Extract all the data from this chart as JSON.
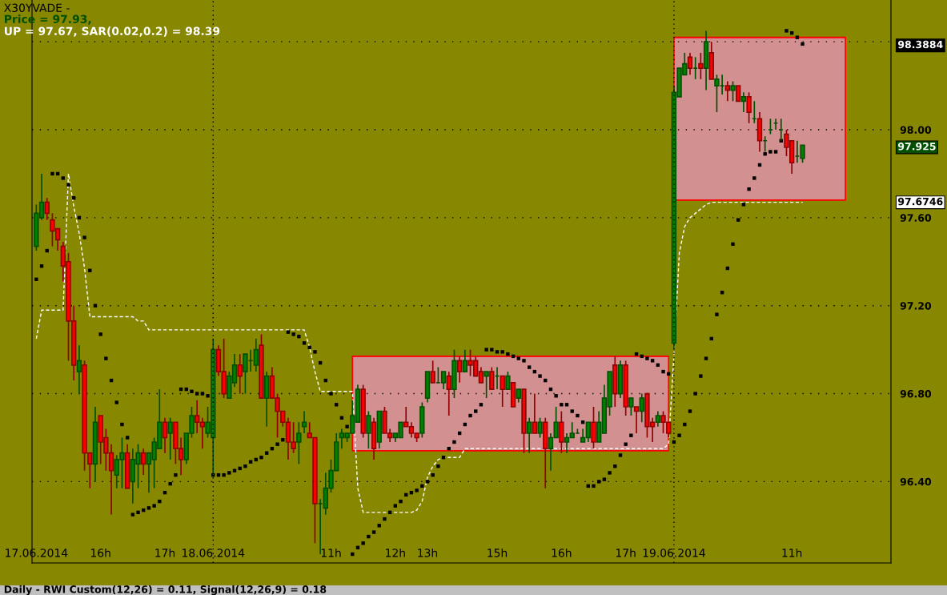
{
  "chart_data": {
    "type": "candlestick",
    "title": "X30YVADE -",
    "annotations": [
      "Price = 97.93,",
      "UP = 97.67, SAR(0.02,0.2) = 98.39",
      "Daily - RWI Custom(12,26) = 0.11, Signal(12,26,9) = 0.18"
    ],
    "categories": [
      "17.06.2014",
      null,
      null,
      null,
      null,
      null,
      null,
      null,
      null,
      null,
      null,
      null,
      "16h",
      null,
      null,
      null,
      null,
      null,
      null,
      null,
      null,
      null,
      null,
      null,
      "17h",
      null,
      null,
      null,
      null,
      null,
      null,
      null,
      null,
      "18.06.2014",
      null,
      null,
      null,
      null,
      null,
      null,
      null,
      null,
      null,
      null,
      null,
      null,
      null,
      null,
      null,
      null,
      null,
      null,
      null,
      null,
      null,
      "11h",
      null,
      null,
      null,
      null,
      null,
      null,
      null,
      null,
      null,
      null,
      null,
      "12h",
      null,
      null,
      null,
      null,
      null,
      "13h",
      null,
      null,
      null,
      null,
      null,
      null,
      null,
      null,
      null,
      null,
      null,
      null,
      "15h",
      null,
      null,
      null,
      null,
      null,
      null,
      null,
      null,
      null,
      null,
      null,
      "16h",
      null,
      null,
      null,
      null,
      null,
      null,
      null,
      null,
      null,
      null,
      null,
      "17h",
      null,
      null,
      null,
      null,
      null,
      null,
      null,
      null,
      "19.06.2014",
      null,
      null,
      null,
      null,
      null,
      null,
      null,
      null,
      null,
      null,
      null,
      null,
      null,
      null,
      null,
      null,
      null,
      null,
      null,
      null,
      null,
      "11h",
      null,
      null,
      null,
      null,
      null,
      null,
      null,
      null,
      null,
      null,
      null,
      null,
      null,
      null,
      null,
      null,
      null,
      null
    ],
    "ohlc": [
      [
        97.47,
        97.66,
        97.45,
        97.62
      ],
      [
        97.6,
        97.8,
        97.59,
        97.67
      ],
      [
        97.67,
        97.69,
        97.59,
        97.62
      ],
      [
        97.59,
        97.62,
        97.47,
        97.54
      ],
      [
        97.55,
        97.55,
        97.45,
        97.5
      ],
      [
        97.47,
        97.49,
        97.31,
        97.38
      ],
      [
        97.4,
        97.44,
        96.95,
        97.13
      ],
      [
        97.13,
        97.2,
        96.86,
        96.93
      ],
      [
        96.9,
        97.02,
        96.8,
        96.95
      ],
      [
        96.93,
        96.95,
        96.45,
        96.53
      ],
      [
        96.53,
        96.53,
        96.37,
        96.48
      ],
      [
        96.48,
        96.74,
        96.4,
        96.67
      ],
      [
        96.7,
        96.7,
        96.48,
        96.58
      ],
      [
        96.6,
        96.64,
        96.45,
        96.53
      ],
      [
        96.53,
        96.57,
        96.25,
        96.45
      ],
      [
        96.43,
        96.52,
        96.37,
        96.5
      ],
      [
        96.5,
        96.6,
        96.37,
        96.53
      ],
      [
        96.53,
        96.57,
        96.37,
        96.37
      ],
      [
        96.4,
        96.55,
        96.3,
        96.5
      ],
      [
        96.48,
        96.57,
        96.37,
        96.53
      ],
      [
        96.53,
        96.55,
        96.43,
        96.48
      ],
      [
        96.48,
        96.53,
        96.35,
        96.53
      ],
      [
        96.5,
        96.6,
        96.37,
        96.58
      ],
      [
        96.55,
        96.82,
        96.55,
        96.67
      ],
      [
        96.67,
        96.69,
        96.53,
        96.6
      ],
      [
        96.62,
        96.69,
        96.5,
        96.67
      ],
      [
        96.67,
        96.67,
        96.48,
        96.55
      ],
      [
        96.55,
        96.6,
        96.43,
        96.5
      ],
      [
        96.5,
        96.62,
        96.48,
        96.62
      ],
      [
        96.62,
        96.74,
        96.6,
        96.7
      ],
      [
        96.7,
        96.77,
        96.62,
        96.67
      ],
      [
        96.67,
        96.69,
        96.55,
        96.65
      ],
      [
        96.62,
        96.74,
        96.6,
        96.67
      ],
      [
        96.6,
        97.05,
        96.43,
        97.0
      ],
      [
        97.0,
        97.02,
        96.88,
        96.9
      ],
      [
        96.9,
        97.05,
        96.78,
        96.8
      ],
      [
        96.78,
        96.9,
        96.78,
        96.88
      ],
      [
        96.85,
        96.98,
        96.83,
        96.93
      ],
      [
        96.93,
        96.98,
        96.8,
        96.88
      ],
      [
        96.9,
        96.98,
        96.8,
        96.98
      ],
      [
        96.95,
        97.0,
        96.9,
        96.95
      ],
      [
        96.93,
        97.05,
        96.9,
        97.0
      ],
      [
        97.02,
        97.07,
        96.78,
        96.78
      ],
      [
        96.78,
        96.9,
        96.65,
        96.88
      ],
      [
        96.88,
        96.92,
        96.78,
        96.78
      ],
      [
        96.78,
        96.8,
        96.6,
        96.72
      ],
      [
        96.72,
        96.72,
        96.65,
        96.67
      ],
      [
        96.67,
        96.69,
        96.5,
        96.58
      ],
      [
        96.58,
        96.67,
        96.53,
        96.55
      ],
      [
        96.58,
        96.67,
        96.48,
        96.62
      ],
      [
        96.65,
        96.72,
        96.62,
        96.67
      ],
      [
        96.62,
        96.67,
        96.6,
        96.6
      ],
      [
        96.6,
        96.6,
        96.12,
        96.3
      ],
      [
        96.3,
        96.32,
        96.07,
        96.3
      ],
      [
        96.28,
        96.44,
        96.25,
        96.37
      ],
      [
        96.37,
        96.5,
        96.35,
        96.45
      ],
      [
        96.45,
        96.62,
        96.45,
        96.58
      ],
      [
        96.6,
        96.64,
        96.55,
        96.62
      ],
      [
        96.6,
        96.62,
        96.58,
        96.62
      ],
      [
        96.62,
        96.77,
        96.62,
        96.7
      ],
      [
        96.67,
        96.84,
        96.67,
        96.82
      ],
      [
        96.82,
        96.84,
        96.6,
        96.62
      ],
      [
        96.62,
        96.72,
        96.55,
        96.7
      ],
      [
        96.67,
        96.69,
        96.5,
        96.55
      ],
      [
        96.58,
        96.72,
        96.55,
        96.72
      ],
      [
        96.72,
        96.74,
        96.62,
        96.62
      ],
      [
        96.62,
        96.64,
        96.58,
        96.6
      ],
      [
        96.6,
        96.62,
        96.58,
        96.62
      ],
      [
        96.6,
        96.67,
        96.6,
        96.67
      ],
      [
        96.67,
        96.74,
        96.65,
        96.65
      ],
      [
        96.65,
        96.67,
        96.6,
        96.62
      ],
      [
        96.62,
        96.62,
        96.58,
        96.6
      ],
      [
        96.62,
        96.76,
        96.6,
        96.74
      ],
      [
        96.78,
        96.9,
        96.76,
        96.9
      ],
      [
        96.9,
        96.95,
        96.85,
        96.85
      ],
      [
        96.85,
        96.92,
        96.85,
        96.85
      ],
      [
        96.85,
        96.9,
        96.82,
        96.9
      ],
      [
        96.88,
        96.9,
        96.7,
        96.82
      ],
      [
        96.82,
        97.0,
        96.78,
        96.95
      ],
      [
        96.95,
        96.97,
        96.85,
        96.9
      ],
      [
        96.9,
        97.0,
        96.9,
        96.95
      ],
      [
        96.95,
        97.0,
        96.88,
        96.93
      ],
      [
        96.95,
        96.97,
        96.88,
        96.88
      ],
      [
        96.9,
        96.92,
        96.85,
        96.85
      ],
      [
        96.88,
        96.9,
        96.78,
        96.9
      ],
      [
        96.9,
        96.92,
        96.82,
        96.82
      ],
      [
        96.88,
        96.92,
        96.82,
        96.88
      ],
      [
        96.88,
        96.88,
        96.74,
        96.82
      ],
      [
        96.82,
        96.9,
        96.82,
        96.88
      ],
      [
        96.85,
        96.85,
        96.74,
        96.74
      ],
      [
        96.78,
        96.82,
        96.76,
        96.82
      ],
      [
        96.82,
        96.82,
        96.53,
        96.62
      ],
      [
        96.62,
        96.69,
        96.53,
        96.67
      ],
      [
        96.67,
        96.8,
        96.62,
        96.62
      ],
      [
        96.62,
        96.69,
        96.6,
        96.67
      ],
      [
        96.67,
        96.69,
        96.37,
        96.55
      ],
      [
        96.55,
        96.62,
        96.45,
        96.6
      ],
      [
        96.6,
        96.74,
        96.6,
        96.67
      ],
      [
        96.67,
        96.72,
        96.53,
        96.58
      ],
      [
        96.58,
        96.62,
        96.53,
        96.6
      ],
      [
        96.6,
        96.67,
        96.6,
        96.62
      ],
      [
        96.62,
        96.64,
        96.62,
        96.62
      ],
      [
        96.58,
        96.64,
        96.58,
        96.6
      ],
      [
        96.6,
        96.67,
        96.58,
        96.67
      ],
      [
        96.67,
        96.74,
        96.55,
        96.58
      ],
      [
        96.58,
        96.72,
        96.58,
        96.67
      ],
      [
        96.62,
        96.84,
        96.62,
        96.78
      ],
      [
        96.74,
        96.9,
        96.7,
        96.9
      ],
      [
        96.93,
        96.97,
        96.74,
        96.8
      ],
      [
        96.8,
        96.95,
        96.78,
        96.93
      ],
      [
        96.93,
        96.95,
        96.7,
        96.74
      ],
      [
        96.74,
        96.78,
        96.7,
        96.78
      ],
      [
        96.74,
        96.74,
        96.62,
        96.72
      ],
      [
        96.72,
        96.8,
        96.67,
        96.78
      ],
      [
        96.8,
        96.8,
        96.6,
        96.65
      ],
      [
        96.67,
        96.69,
        96.58,
        96.65
      ],
      [
        96.67,
        96.72,
        96.65,
        96.7
      ],
      [
        96.7,
        96.72,
        96.62,
        96.67
      ],
      [
        96.67,
        96.67,
        96.6,
        96.62
      ],
      [
        97.03,
        98.2,
        97.0,
        98.17
      ],
      [
        98.15,
        98.28,
        98.15,
        98.28
      ],
      [
        98.25,
        98.35,
        98.25,
        98.3
      ],
      [
        98.33,
        98.35,
        98.25,
        98.28
      ],
      [
        98.28,
        98.33,
        98.23,
        98.28
      ],
      [
        98.3,
        98.35,
        98.23,
        98.28
      ],
      [
        98.28,
        98.45,
        98.18,
        98.4
      ],
      [
        98.35,
        98.4,
        98.23,
        98.23
      ],
      [
        98.2,
        98.25,
        98.08,
        98.23
      ],
      [
        98.2,
        98.25,
        98.16,
        98.2
      ],
      [
        98.2,
        98.22,
        98.13,
        98.18
      ],
      [
        98.18,
        98.22,
        98.13,
        98.2
      ],
      [
        98.2,
        98.2,
        98.13,
        98.13
      ],
      [
        98.13,
        98.17,
        98.08,
        98.15
      ],
      [
        98.15,
        98.17,
        98.03,
        98.08
      ],
      [
        98.05,
        98.13,
        98.03,
        98.05
      ],
      [
        98.05,
        98.08,
        97.9,
        97.95
      ],
      [
        97.95,
        97.97,
        97.9,
        97.95
      ],
      [
        98.0,
        98.05,
        97.98,
        98.0
      ],
      [
        98.03,
        98.05,
        98.0,
        98.03
      ],
      [
        98.0,
        98.05,
        97.95,
        98.0
      ],
      [
        97.98,
        98.0,
        97.88,
        97.92
      ],
      [
        97.95,
        97.95,
        97.8,
        97.85
      ],
      [
        97.88,
        97.95,
        97.85,
        97.88
      ],
      [
        97.87,
        97.93,
        97.85,
        97.93
      ],
      null,
      null,
      null,
      null,
      null,
      null,
      null,
      null,
      null,
      null,
      null,
      null,
      null,
      null,
      null,
      null
    ],
    "series": [
      {
        "type": "line",
        "color": "#ff0000",
        "upper": [
          null,
          null,
          null,
          null,
          null,
          null,
          null,
          null,
          null,
          null,
          null,
          null,
          null,
          null,
          null,
          null,
          null,
          null,
          null,
          null,
          null,
          null,
          null,
          null,
          null,
          null,
          null,
          null,
          null,
          null,
          null,
          null,
          null,
          null,
          null,
          null,
          null,
          null,
          null,
          null,
          null,
          null,
          null,
          null,
          null,
          null,
          null,
          null,
          null,
          null,
          null,
          null,
          null,
          null,
          null,
          null,
          null,
          null,
          null,
          96.97,
          96.97,
          96.97,
          96.97,
          96.97,
          96.97,
          96.97,
          96.97,
          96.97,
          96.97,
          96.97,
          96.97,
          96.97,
          96.97,
          96.97,
          96.97,
          96.97,
          96.97,
          96.97,
          96.97,
          96.97,
          96.97,
          96.97,
          96.97,
          96.97,
          96.97,
          96.97,
          96.97,
          96.97,
          96.97,
          96.97,
          96.97,
          96.97,
          96.97,
          96.97,
          96.97,
          96.97,
          96.97,
          96.97,
          96.97,
          96.97,
          96.97,
          96.97,
          96.97,
          96.97,
          96.97,
          96.97,
          96.97,
          96.97,
          96.97,
          96.97,
          96.97,
          96.97,
          96.97,
          96.97,
          96.97,
          96.97,
          96.97,
          96.97,
          96.97,
          null,
          null,
          null,
          null,
          null,
          null,
          null,
          null,
          null,
          null,
          null,
          null,
          null,
          null,
          null,
          null,
          null,
          null,
          null,
          null,
          null,
          null,
          null,
          null,
          null,
          null,
          null,
          null,
          null,
          null,
          null,
          null,
          null,
          null,
          null,
          null,
          null,
          null,
          null,
          null,
          null
        ],
        "values": [
          null,
          null,
          null,
          null,
          null,
          null,
          null,
          null,
          null,
          null,
          null,
          null,
          null,
          null,
          null,
          null,
          null,
          null,
          null,
          null,
          null,
          null,
          null,
          null,
          null,
          null,
          null,
          null,
          null,
          null,
          null,
          null,
          null,
          null,
          null,
          null,
          null,
          null,
          null,
          null,
          null,
          null,
          null,
          null,
          null,
          null,
          null,
          null,
          null,
          null,
          null,
          null,
          null,
          null,
          null,
          null,
          null,
          null,
          null,
          96.97,
          96.97,
          96.97,
          96.97,
          96.97,
          96.97,
          96.97,
          96.97,
          96.97,
          96.97,
          96.97,
          96.97,
          96.97,
          96.97,
          96.97,
          96.97,
          96.97,
          96.97,
          96.97,
          96.97,
          96.97,
          96.97,
          96.97,
          96.97,
          96.97,
          96.97,
          96.97,
          96.97,
          96.97,
          96.97,
          96.97,
          96.97,
          96.97,
          96.97,
          96.97,
          96.97,
          96.97,
          96.97,
          96.97,
          96.97,
          96.97,
          96.97,
          96.97,
          96.97,
          96.97,
          96.97,
          96.97,
          96.97,
          96.97,
          96.97,
          96.97,
          96.97,
          96.97,
          96.97,
          96.97,
          96.97,
          96.97,
          96.97,
          96.97,
          96.97,
          null,
          null,
          null,
          null,
          null,
          null,
          null,
          null,
          null,
          null,
          null,
          null,
          null,
          null,
          null,
          null,
          null,
          null,
          null,
          null,
          null,
          null,
          null,
          null,
          null,
          null,
          null,
          null,
          null,
          null,
          null,
          null,
          null,
          null,
          null,
          null,
          null,
          null,
          null,
          null,
          null
        ],
        "lower": [
          null,
          null,
          null,
          null,
          null,
          null,
          null,
          null,
          null,
          null,
          null,
          null,
          null,
          null,
          null,
          null,
          null,
          null,
          null,
          null,
          null,
          null,
          null,
          null,
          null,
          null,
          null,
          null,
          null,
          null,
          null,
          null,
          null,
          null,
          null,
          null,
          null,
          null,
          null,
          null,
          null,
          null,
          null,
          null,
          null,
          null,
          null,
          null,
          null,
          null,
          null,
          null,
          null,
          null,
          null,
          null,
          null,
          null,
          null,
          96.54,
          96.54,
          96.54,
          96.54,
          96.54,
          96.54,
          96.54,
          96.54,
          96.54,
          96.54,
          96.54,
          96.54,
          96.54,
          96.54,
          96.54,
          96.54,
          96.54,
          96.54,
          96.54,
          96.54,
          96.54,
          96.54,
          96.54,
          96.54,
          96.54,
          96.54,
          96.54,
          96.54,
          96.54,
          96.54,
          96.54,
          96.54,
          96.54,
          96.54,
          96.54,
          96.54,
          96.54,
          96.54,
          96.54,
          96.54,
          96.54,
          96.54,
          96.54,
          96.54,
          96.54,
          96.54,
          96.54,
          96.54,
          96.54,
          96.54,
          96.54,
          96.54,
          96.54,
          96.54,
          96.54,
          96.54,
          96.54,
          96.54,
          96.54,
          96.54,
          null,
          null,
          null,
          null,
          null,
          null,
          null,
          null,
          null,
          null,
          null,
          null,
          null,
          null,
          null,
          null,
          null,
          null,
          null,
          null,
          null,
          null,
          null,
          null,
          null,
          null,
          null,
          null,
          null,
          null,
          null,
          null,
          null,
          null,
          null,
          null,
          null,
          null,
          null,
          null,
          null
        ]
      },
      {
        "type": "line",
        "color": "#ff0000",
        "upper": [
          null,
          null,
          null,
          null,
          null,
          null,
          null,
          null,
          null,
          null,
          null,
          null,
          null,
          null,
          null,
          null,
          null,
          null,
          null,
          null,
          null,
          null,
          null,
          null,
          null,
          null,
          null,
          null,
          null,
          null,
          null,
          null,
          null,
          null,
          null,
          null,
          null,
          null,
          null,
          null,
          null,
          null,
          null,
          null,
          null,
          null,
          null,
          null,
          null,
          null,
          null,
          null,
          null,
          null,
          null,
          null,
          null,
          null,
          null,
          null,
          null,
          null,
          null,
          null,
          null,
          null,
          null,
          null,
          null,
          null,
          null,
          null,
          null,
          null,
          null,
          null,
          null,
          null,
          null,
          null,
          null,
          null,
          null,
          null,
          null,
          null,
          null,
          null,
          null,
          null,
          null,
          null,
          null,
          null,
          null,
          null,
          null,
          null,
          null,
          null,
          null,
          null,
          null,
          null,
          null,
          null,
          null,
          null,
          null,
          null,
          null,
          null,
          null,
          null,
          null,
          null,
          null,
          null,
          null,
          98.42,
          98.42,
          98.42,
          98.42,
          98.42,
          98.42,
          98.42,
          98.42,
          98.42,
          98.42,
          98.42,
          98.42,
          98.42,
          98.42,
          98.42,
          98.42,
          98.42,
          98.42,
          98.42,
          98.42,
          98.42,
          98.42,
          98.42,
          98.42,
          98.42,
          98.42,
          98.42,
          98.42,
          98.42,
          98.42,
          98.42,
          98.42,
          98.42,
          null,
          null,
          null,
          null,
          null,
          null,
          null,
          null
        ],
        "values": [
          null,
          null,
          null,
          null,
          null,
          null,
          null,
          null,
          null,
          null,
          null,
          null,
          null,
          null,
          null,
          null,
          null,
          null,
          null,
          null,
          null,
          null,
          null,
          null,
          null,
          null,
          null,
          null,
          null,
          null,
          null,
          null,
          null,
          null,
          null,
          null,
          null,
          null,
          null,
          null,
          null,
          null,
          null,
          null,
          null,
          null,
          null,
          null,
          null,
          null,
          null,
          null,
          null,
          null,
          null,
          null,
          null,
          null,
          null,
          null,
          null,
          null,
          null,
          null,
          null,
          null,
          null,
          null,
          null,
          null,
          null,
          null,
          null,
          null,
          null,
          null,
          null,
          null,
          null,
          null,
          null,
          null,
          null,
          null,
          null,
          null,
          null,
          null,
          null,
          null,
          null,
          null,
          null,
          null,
          null,
          null,
          null,
          null,
          null,
          null,
          null,
          null,
          null,
          null,
          null,
          null,
          null,
          null,
          null,
          null,
          null,
          null,
          null,
          null,
          null,
          null,
          null,
          null,
          null,
          98.42,
          98.42,
          98.42,
          98.42,
          98.42,
          98.42,
          98.42,
          98.42,
          98.42,
          98.42,
          98.42,
          98.42,
          98.42,
          98.42,
          98.42,
          98.42,
          98.42,
          98.42,
          98.42,
          98.42,
          98.42,
          98.42,
          98.42,
          98.42,
          98.42,
          98.42,
          98.42,
          98.42,
          98.42,
          98.42,
          98.42,
          98.42,
          98.42,
          null,
          null,
          null,
          null,
          null,
          null,
          null,
          null
        ],
        "lower": [
          null,
          null,
          null,
          null,
          null,
          null,
          null,
          null,
          null,
          null,
          null,
          null,
          null,
          null,
          null,
          null,
          null,
          null,
          null,
          null,
          null,
          null,
          null,
          null,
          null,
          null,
          null,
          null,
          null,
          null,
          null,
          null,
          null,
          null,
          null,
          null,
          null,
          null,
          null,
          null,
          null,
          null,
          null,
          null,
          null,
          null,
          null,
          null,
          null,
          null,
          null,
          null,
          null,
          null,
          null,
          null,
          null,
          null,
          null,
          null,
          null,
          null,
          null,
          null,
          null,
          null,
          null,
          null,
          null,
          null,
          null,
          null,
          null,
          null,
          null,
          null,
          null,
          null,
          null,
          null,
          null,
          null,
          null,
          null,
          null,
          null,
          null,
          null,
          null,
          null,
          null,
          null,
          null,
          null,
          null,
          null,
          null,
          null,
          null,
          null,
          null,
          null,
          null,
          null,
          null,
          null,
          null,
          null,
          null,
          null,
          null,
          null,
          null,
          null,
          null,
          null,
          null,
          null,
          null,
          97.68,
          97.68,
          97.68,
          97.68,
          97.68,
          97.68,
          97.68,
          97.68,
          97.68,
          97.68,
          97.68,
          97.68,
          97.68,
          97.68,
          97.68,
          97.68,
          97.68,
          97.68,
          97.68,
          97.68,
          97.68,
          97.68,
          97.68,
          97.68,
          97.68,
          97.68,
          97.68,
          97.68,
          97.68,
          97.68,
          97.68,
          97.68,
          97.68,
          null,
          null,
          null,
          null,
          null,
          null,
          null,
          null
        ]
      },
      {
        "type": "line",
        "color": "#ffffff",
        "line_style": "dashed",
        "values": [
          97.05,
          97.18,
          97.18,
          97.18,
          97.18,
          97.18,
          97.8,
          97.65,
          97.53,
          97.37,
          97.15,
          97.15,
          97.15,
          97.15,
          97.15,
          97.15,
          97.15,
          97.15,
          97.15,
          97.13,
          97.13,
          97.09,
          97.09,
          97.09,
          97.09,
          97.09,
          97.09,
          97.09,
          97.09,
          97.09,
          97.09,
          97.09,
          97.09,
          97.09,
          97.09,
          97.09,
          97.09,
          97.09,
          97.09,
          97.09,
          97.09,
          97.09,
          97.09,
          97.09,
          97.09,
          97.09,
          97.09,
          97.09,
          97.09,
          97.09,
          97.09,
          97.01,
          96.9,
          96.81,
          96.81,
          96.81,
          96.81,
          96.81,
          96.81,
          96.81,
          96.37,
          96.26,
          96.26,
          96.26,
          96.26,
          96.26,
          96.26,
          96.26,
          96.26,
          96.26,
          96.26,
          96.27,
          96.31,
          96.42,
          96.47,
          96.5,
          96.51,
          96.51,
          96.51,
          96.51,
          96.55,
          96.55,
          96.55,
          96.55,
          96.55,
          96.55,
          96.55,
          96.55,
          96.55,
          96.55,
          96.55,
          96.55,
          96.55,
          96.55,
          96.55,
          96.55,
          96.55,
          96.55,
          96.55,
          96.55,
          96.55,
          96.55,
          96.55,
          96.55,
          96.55,
          96.55,
          96.55,
          96.55,
          96.55,
          96.55,
          96.55,
          96.55,
          96.55,
          96.55,
          96.55,
          96.55,
          96.55,
          96.55,
          96.57,
          96.98,
          97.44,
          97.56,
          97.6,
          97.62,
          97.64,
          97.66,
          97.67,
          97.67,
          97.67,
          97.67,
          97.67,
          97.67,
          97.67,
          97.67,
          97.67,
          97.67,
          97.67,
          97.67,
          97.67,
          97.67,
          97.67,
          97.67,
          97.67,
          97.67,
          null,
          null,
          null,
          null,
          null,
          null,
          null,
          null,
          null,
          null,
          null,
          null,
          null,
          null,
          null,
          null
        ]
      },
      {
        "type": "scatter",
        "color": "#000000",
        "marker": "square",
        "values": [
          97.32,
          97.38,
          97.45,
          97.8,
          97.8,
          97.78,
          97.75,
          97.69,
          97.6,
          97.51,
          97.36,
          97.2,
          97.07,
          96.96,
          96.86,
          96.76,
          96.66,
          96.6,
          96.25,
          96.26,
          96.27,
          96.28,
          96.29,
          96.31,
          96.35,
          96.39,
          96.43,
          96.82,
          96.82,
          96.81,
          96.8,
          96.8,
          96.79,
          96.43,
          96.43,
          96.43,
          96.44,
          96.45,
          96.46,
          96.47,
          96.49,
          96.5,
          96.51,
          96.53,
          96.55,
          96.57,
          96.59,
          97.08,
          97.07,
          97.06,
          97.03,
          97.01,
          96.99,
          96.94,
          96.86,
          96.8,
          96.75,
          96.69,
          96.65,
          96.07,
          96.1,
          96.12,
          96.15,
          96.17,
          96.2,
          96.23,
          96.26,
          96.29,
          96.31,
          96.34,
          96.35,
          96.36,
          96.38,
          96.4,
          96.43,
          96.47,
          96.51,
          96.55,
          96.58,
          96.62,
          96.66,
          96.7,
          96.72,
          96.75,
          97.0,
          97.0,
          96.99,
          96.99,
          96.98,
          96.97,
          96.96,
          96.95,
          96.92,
          96.9,
          96.88,
          96.86,
          96.82,
          96.79,
          96.75,
          96.75,
          96.72,
          96.7,
          96.67,
          96.38,
          96.38,
          96.4,
          96.41,
          96.44,
          96.47,
          96.52,
          96.57,
          96.61,
          96.98,
          96.97,
          96.96,
          96.95,
          96.93,
          96.9,
          96.89,
          96.58,
          96.61,
          96.66,
          96.72,
          96.8,
          96.88,
          96.96,
          97.05,
          97.16,
          97.26,
          97.37,
          97.48,
          97.59,
          97.66,
          97.73,
          97.78,
          97.84,
          97.89,
          97.9,
          97.9,
          97.95,
          98.45,
          98.44,
          98.42,
          98.39,
          null,
          null,
          null,
          null,
          null,
          null,
          null,
          null,
          null,
          null,
          null,
          null,
          null,
          null,
          null,
          null
        ]
      }
    ],
    "ylim": [
      96.03,
      98.59
    ],
    "yticks": [
      {
        "value": 96.4,
        "label": "96.40"
      },
      {
        "value": 96.8,
        "label": "96.80"
      },
      {
        "value": 97.2,
        "label": "97.20"
      },
      {
        "value": 97.6,
        "label": "97.60"
      },
      {
        "value": 98.0,
        "label": "98.00"
      },
      {
        "value": 98.4,
        "label": null
      }
    ],
    "y2lim": [
      96.03,
      98.59
    ],
    "y2ticks": [
      98.3884,
      97.925,
      97.6746
    ],
    "grid": "y",
    "ref_lines": [
      {
        "axis": "x",
        "value": "18.06.2014",
        "color": "#000000",
        "line_style": "dotted"
      },
      {
        "axis": "x",
        "value": "19.06.2014",
        "color": "#000000",
        "line_style": "dotted"
      }
    ]
  }
}
